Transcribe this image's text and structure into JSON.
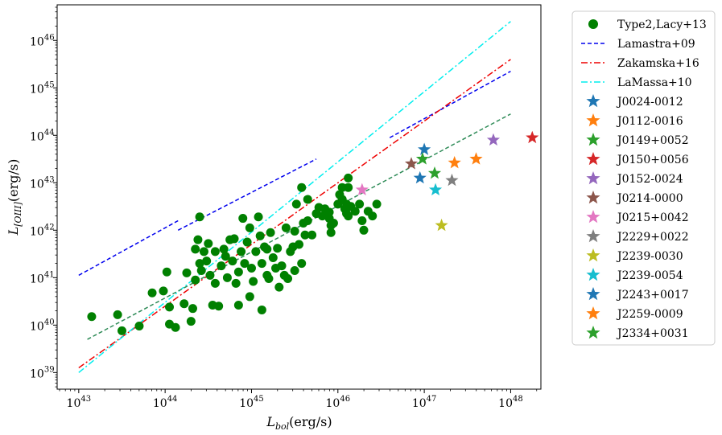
{
  "chart_data": {
    "type": "scatter",
    "title": "",
    "xlabel": {
      "main": "L",
      "sub": "bol",
      "rest": "(erg/s)"
    },
    "ylabel": {
      "main": "L",
      "sub": "[OIII]",
      "rest": "(erg/s)"
    },
    "x_log": true,
    "y_log": true,
    "xlim": [
      42.75,
      48.35
    ],
    "ylim": [
      38.65,
      46.75
    ],
    "x_ticks": [
      43,
      44,
      45,
      46,
      47,
      48
    ],
    "y_ticks": [
      39,
      40,
      41,
      42,
      43,
      44,
      45,
      46
    ],
    "tick_base": "10",
    "legend_position": "outside-right",
    "grid": false,
    "lines": [
      {
        "name": "Lamastra+09",
        "color": "#0000ee",
        "dash": "dashed",
        "segments": [
          [
            [
              43.0,
              41.05
            ],
            [
              44.15,
              42.2
            ]
          ],
          [
            [
              44.15,
              42.0
            ],
            [
              45.75,
              43.5
            ]
          ],
          [
            [
              46.6,
              43.95
            ],
            [
              48.0,
              45.35
            ]
          ]
        ]
      },
      {
        "name": "Zakamska+16",
        "color": "#ee0000",
        "dash": "dashdot",
        "segments": [
          [
            [
              43.0,
              39.1
            ],
            [
              48.0,
              45.6
            ]
          ]
        ]
      },
      {
        "name": "LaMassa+10",
        "color": "#00eeee",
        "dash": "dashdot",
        "segments": [
          [
            [
              43.0,
              39.0
            ],
            [
              48.0,
              46.4
            ]
          ]
        ]
      },
      {
        "name": "",
        "color": "#2e8b57",
        "dash": "dashed",
        "segments": [
          [
            [
              43.1,
              39.7
            ],
            [
              48.0,
              44.45
            ]
          ]
        ]
      }
    ],
    "type2": {
      "name": "Type2,Lacy+13",
      "color": "#008000",
      "points": [
        [
          43.15,
          40.18
        ],
        [
          43.45,
          40.22
        ],
        [
          43.5,
          39.88
        ],
        [
          43.7,
          39.98
        ],
        [
          43.85,
          40.68
        ],
        [
          43.98,
          40.72
        ],
        [
          44.02,
          41.12
        ],
        [
          44.05,
          40.38
        ],
        [
          44.05,
          40.02
        ],
        [
          44.12,
          39.95
        ],
        [
          44.22,
          40.45
        ],
        [
          44.25,
          41.1
        ],
        [
          44.3,
          40.08
        ],
        [
          44.32,
          40.35
        ],
        [
          44.35,
          40.95
        ],
        [
          44.4,
          41.3
        ],
        [
          44.35,
          41.6
        ],
        [
          44.38,
          41.8
        ],
        [
          44.4,
          42.28
        ],
        [
          44.42,
          41.15
        ],
        [
          44.45,
          41.55
        ],
        [
          44.48,
          41.35
        ],
        [
          44.5,
          41.72
        ],
        [
          44.52,
          41.05
        ],
        [
          44.55,
          40.42
        ],
        [
          44.58,
          40.88
        ],
        [
          44.58,
          41.55
        ],
        [
          44.62,
          40.4
        ],
        [
          44.65,
          41.25
        ],
        [
          44.68,
          41.6
        ],
        [
          44.7,
          41.45
        ],
        [
          44.72,
          41.0
        ],
        [
          44.75,
          41.8
        ],
        [
          44.78,
          41.35
        ],
        [
          44.8,
          41.82
        ],
        [
          44.82,
          40.88
        ],
        [
          44.85,
          40.42
        ],
        [
          44.85,
          41.12
        ],
        [
          44.88,
          41.55
        ],
        [
          44.9,
          42.25
        ],
        [
          44.92,
          41.3
        ],
        [
          44.95,
          41.75
        ],
        [
          44.98,
          40.6
        ],
        [
          44.98,
          42.05
        ],
        [
          45.0,
          41.2
        ],
        [
          45.02,
          40.92
        ],
        [
          45.05,
          41.55
        ],
        [
          45.08,
          42.28
        ],
        [
          45.1,
          41.88
        ],
        [
          45.12,
          40.32
        ],
        [
          45.12,
          41.3
        ],
        [
          45.15,
          41.65
        ],
        [
          45.18,
          41.05
        ],
        [
          45.18,
          41.6
        ],
        [
          45.2,
          40.98
        ],
        [
          45.22,
          41.95
        ],
        [
          45.25,
          41.42
        ],
        [
          45.28,
          41.2
        ],
        [
          45.3,
          41.62
        ],
        [
          45.32,
          40.8
        ],
        [
          45.35,
          41.25
        ],
        [
          45.38,
          41.05
        ],
        [
          45.4,
          42.05
        ],
        [
          45.42,
          40.98
        ],
        [
          45.45,
          41.55
        ],
        [
          45.48,
          41.65
        ],
        [
          45.5,
          41.98
        ],
        [
          45.5,
          41.15
        ],
        [
          45.52,
          42.55
        ],
        [
          45.55,
          41.7
        ],
        [
          45.58,
          41.3
        ],
        [
          45.58,
          42.9
        ],
        [
          45.6,
          42.15
        ],
        [
          45.62,
          41.9
        ],
        [
          45.65,
          42.2
        ],
        [
          45.65,
          42.65
        ],
        [
          45.7,
          41.9
        ],
        [
          45.75,
          42.35
        ],
        [
          45.78,
          42.48
        ],
        [
          45.82,
          42.3
        ],
        [
          45.85,
          42.45
        ],
        [
          45.9,
          42.38
        ],
        [
          45.9,
          42.25
        ],
        [
          45.92,
          42.1
        ],
        [
          45.92,
          41.95
        ],
        [
          45.95,
          42.15
        ],
        [
          46.0,
          42.55
        ],
        [
          46.02,
          42.75
        ],
        [
          46.05,
          42.65
        ],
        [
          46.05,
          42.9
        ],
        [
          46.08,
          42.45
        ],
        [
          46.1,
          42.55
        ],
        [
          46.1,
          42.35
        ],
        [
          46.12,
          43.1
        ],
        [
          46.12,
          42.9
        ],
        [
          46.12,
          42.3
        ],
        [
          46.15,
          42.5
        ],
        [
          46.2,
          42.4
        ],
        [
          46.25,
          42.55
        ],
        [
          46.28,
          42.2
        ],
        [
          46.3,
          42.0
        ],
        [
          46.35,
          42.4
        ],
        [
          46.4,
          42.3
        ],
        [
          46.45,
          42.55
        ]
      ]
    },
    "stars": [
      {
        "name": "J0024-0012",
        "color": "#1f77b4",
        "x": 46.95,
        "y": 43.1
      },
      {
        "name": "J0112-0016",
        "color": "#ff7f0e",
        "x": 47.35,
        "y": 43.42
      },
      {
        "name": "J0149+0052",
        "color": "#2ca02c",
        "x": 47.12,
        "y": 43.2
      },
      {
        "name": "J0150+0056",
        "color": "#d62728",
        "x": 48.25,
        "y": 43.95
      },
      {
        "name": "J0152-0024",
        "color": "#9467bd",
        "x": 47.8,
        "y": 43.9
      },
      {
        "name": "J0214-0000",
        "color": "#8c564b",
        "x": 46.85,
        "y": 43.4
      },
      {
        "name": "J0215+0042",
        "color": "#e377c2",
        "x": 46.28,
        "y": 42.85
      },
      {
        "name": "J2229+0022",
        "color": "#7f7f7f",
        "x": 47.32,
        "y": 43.05
      },
      {
        "name": "J2239-0030",
        "color": "#bcbd22",
        "x": 47.2,
        "y": 42.1
      },
      {
        "name": "J2239-0054",
        "color": "#17becf",
        "x": 47.13,
        "y": 42.85
      },
      {
        "name": "J2243+0017",
        "color": "#1f77b4",
        "x": 47.0,
        "y": 43.7
      },
      {
        "name": "J2259-0009",
        "color": "#ff7f0e",
        "x": 47.6,
        "y": 43.5
      },
      {
        "name": "J2334+0031",
        "color": "#2ca02c",
        "x": 46.98,
        "y": 43.5
      }
    ]
  }
}
